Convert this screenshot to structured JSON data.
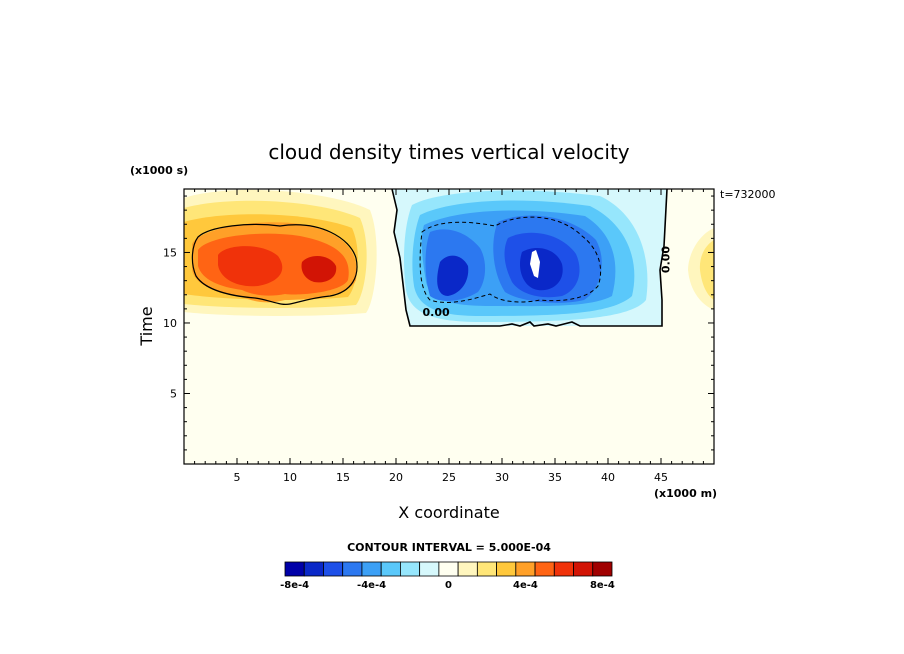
{
  "chart_data": {
    "type": "heatmap",
    "title": "cloud density times vertical velocity",
    "xlabel": "X coordinate",
    "ylabel": "Time",
    "x_scale_label": "(x1000 m)",
    "y_scale_label": "(x1000 s)",
    "time_label": "t=732000",
    "xlim": [
      0,
      50
    ],
    "ylim": [
      0,
      19.5
    ],
    "x_ticks": [
      5,
      10,
      15,
      20,
      25,
      30,
      35,
      40,
      45
    ],
    "y_ticks": [
      5,
      10,
      15
    ],
    "contour_interval_text": "CONTOUR INTERVAL = 5.000E-04",
    "contour_labels": [
      {
        "text": "0.00",
        "x": 22.5,
        "y": 10.5
      },
      {
        "text": "0.00",
        "x": 45.8,
        "y": 14.5
      }
    ],
    "colorbar": {
      "colors": [
        "#0000a8",
        "#0a28c8",
        "#1e50e8",
        "#2c78f0",
        "#3ca0f6",
        "#5ac8fa",
        "#96e6fc",
        "#d6f8fc",
        "#fffff0",
        "#fff6be",
        "#ffe678",
        "#ffc83c",
        "#ffa028",
        "#ff6414",
        "#f0320a",
        "#d21405",
        "#a00000"
      ],
      "tick_labels": [
        "-8e-4",
        "-4e-4",
        "0",
        "4e-4",
        "8e-4"
      ],
      "tick_values": [
        -0.0008,
        -0.0004,
        0,
        0.0004,
        0.0008
      ]
    },
    "background_color": "#fffff0",
    "features": [
      {
        "sign": "positive",
        "x_range": [
          0,
          19.5
        ],
        "y_range": [
          10.8,
          19.5
        ],
        "peak": 0.00085
      },
      {
        "sign": "negative",
        "x_range": [
          20,
          45.5
        ],
        "y_range": [
          10.2,
          19.5
        ],
        "peak": -0.00095
      },
      {
        "sign": "positive",
        "x_range": [
          46,
          50
        ],
        "y_range": [
          11.5,
          17.5
        ],
        "peak": 0.0002
      }
    ]
  }
}
